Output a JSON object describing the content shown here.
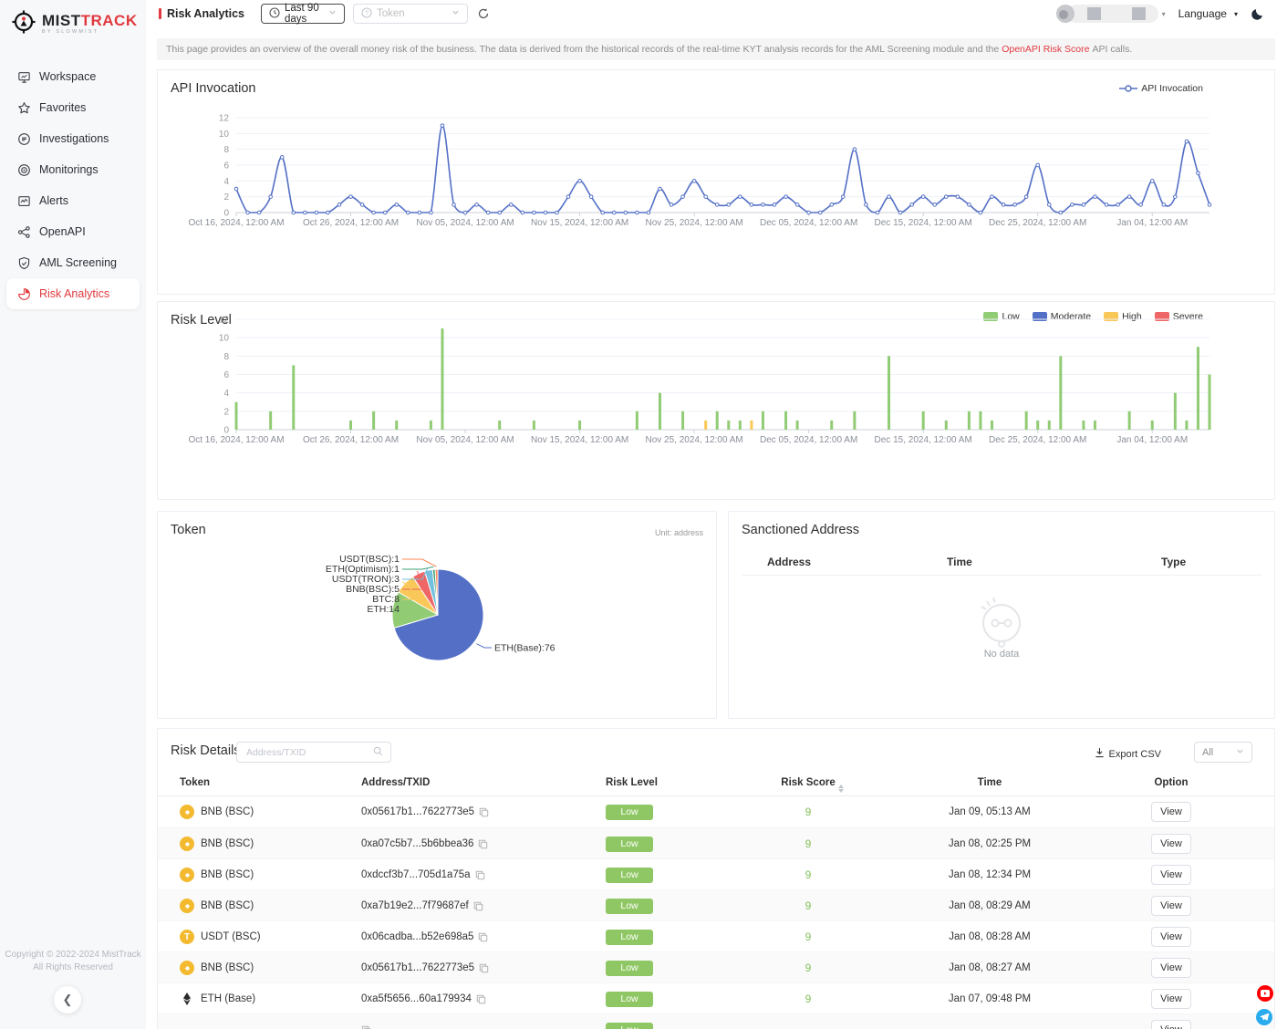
{
  "brand": {
    "mist": "MIST",
    "track": "TRACK",
    "by": "BY SLOWMIST"
  },
  "sidebar": {
    "items": [
      {
        "label": "Workspace",
        "icon": "workspace-icon",
        "active": false
      },
      {
        "label": "Favorites",
        "icon": "star-icon",
        "active": false
      },
      {
        "label": "Investigations",
        "icon": "investigations-icon",
        "active": false
      },
      {
        "label": "Monitorings",
        "icon": "target-icon",
        "active": false
      },
      {
        "label": "Alerts",
        "icon": "alerts-icon",
        "active": false
      },
      {
        "label": "OpenAPI",
        "icon": "api-icon",
        "active": false
      },
      {
        "label": "AML Screening",
        "icon": "shield-icon",
        "active": false
      },
      {
        "label": "Risk Analytics",
        "icon": "pie-icon",
        "active": true
      }
    ],
    "copyright": [
      "Copyright © 2022-2024 MistTrack",
      "All Rights Reserved"
    ]
  },
  "topbar": {
    "breadcrumb": "Risk Analytics",
    "date_range": "Last 90 days",
    "token_placeholder": "Token",
    "language": "Language"
  },
  "banner": {
    "text": "This page provides an overview of the overall money risk of the business. The data is derived from the historical records of the real-time KYT analysis records for the AML Screening module and the",
    "link": "OpenAPI Risk Score",
    "suffix": "API calls."
  },
  "chart_data": [
    {
      "id": "api_invocation",
      "type": "line",
      "title": "API Invocation",
      "legend": [
        {
          "name": "API Invocation",
          "color": "#5470c6"
        }
      ],
      "ylim": [
        0,
        12
      ],
      "y_ticks": [
        0,
        2,
        4,
        6,
        8,
        10,
        12
      ],
      "grid": true,
      "x_ticks": [
        {
          "i": 0,
          "label": "Oct 16, 2024, 12:00 AM"
        },
        {
          "i": 10,
          "label": "Oct 26, 2024, 12:00 AM"
        },
        {
          "i": 20,
          "label": "Nov 05, 2024, 12:00 AM"
        },
        {
          "i": 30,
          "label": "Nov 15, 2024, 12:00 AM"
        },
        {
          "i": 40,
          "label": "Nov 25, 2024, 12:00 AM"
        },
        {
          "i": 50,
          "label": "Dec 05, 2024, 12:00 AM"
        },
        {
          "i": 60,
          "label": "Dec 15, 2024, 12:00 AM"
        },
        {
          "i": 70,
          "label": "Dec 25, 2024, 12:00 AM"
        },
        {
          "i": 80,
          "label": "Jan 04, 12:00 AM"
        }
      ],
      "values": [
        3,
        0,
        0,
        2,
        7,
        0,
        0,
        0,
        0,
        1,
        2,
        1,
        0,
        0,
        1,
        0,
        0,
        0,
        11,
        1,
        0,
        1,
        0,
        0,
        1,
        0,
        0,
        0,
        0,
        2,
        4,
        2,
        0,
        0,
        0,
        0,
        0,
        3,
        1,
        2,
        4,
        2,
        1,
        1,
        2,
        1,
        1,
        1,
        2,
        1,
        0,
        0,
        1,
        2,
        8,
        1,
        0,
        2,
        0,
        1,
        2,
        1,
        2,
        2,
        1,
        0,
        2,
        1,
        1,
        2,
        6,
        1,
        0,
        1,
        1,
        2,
        1,
        1,
        2,
        1,
        4,
        1,
        2,
        9,
        5,
        1
      ]
    },
    {
      "id": "risk_level",
      "type": "bar",
      "title": "Risk Level",
      "legend": [
        {
          "name": "Low",
          "color": "#91cc75"
        },
        {
          "name": "Moderate",
          "color": "#5470c6"
        },
        {
          "name": "High",
          "color": "#fac858"
        },
        {
          "name": "Severe",
          "color": "#ee6666"
        }
      ],
      "ylim": [
        0,
        12
      ],
      "y_ticks": [
        0,
        2,
        4,
        6,
        8,
        10,
        12
      ],
      "grid": true,
      "x_ticks": [
        {
          "i": 0,
          "label": "Oct 16, 2024, 12:00 AM"
        },
        {
          "i": 10,
          "label": "Oct 26, 2024, 12:00 AM"
        },
        {
          "i": 20,
          "label": "Nov 05, 2024, 12:00 AM"
        },
        {
          "i": 30,
          "label": "Nov 15, 2024, 12:00 AM"
        },
        {
          "i": 40,
          "label": "Nov 25, 2024, 12:00 AM"
        },
        {
          "i": 50,
          "label": "Dec 05, 2024, 12:00 AM"
        },
        {
          "i": 60,
          "label": "Dec 15, 2024, 12:00 AM"
        },
        {
          "i": 70,
          "label": "Dec 25, 2024, 12:00 AM"
        },
        {
          "i": 80,
          "label": "Jan 04, 12:00 AM"
        }
      ],
      "series": [
        {
          "name": "Low",
          "color": "#91cc75",
          "values": [
            3,
            0,
            0,
            2,
            0,
            7,
            0,
            0,
            0,
            0,
            1,
            0,
            2,
            0,
            1,
            0,
            0,
            1,
            11,
            0,
            0,
            0,
            0,
            1,
            0,
            0,
            1,
            0,
            0,
            0,
            1,
            0,
            0,
            0,
            0,
            2,
            0,
            4,
            0,
            2,
            0,
            0,
            2,
            1,
            1,
            0,
            2,
            0,
            2,
            1,
            0,
            0,
            1,
            0,
            2,
            0,
            0,
            8,
            0,
            0,
            2,
            0,
            1,
            0,
            2,
            2,
            1,
            0,
            0,
            2,
            1,
            1,
            8,
            0,
            1,
            1,
            0,
            0,
            2,
            0,
            1,
            0,
            4,
            1,
            9,
            6
          ]
        },
        {
          "name": "High",
          "color": "#fac858",
          "points": [
            {
              "i": 41,
              "v": 1
            },
            {
              "i": 45,
              "v": 1
            }
          ]
        }
      ]
    },
    {
      "id": "token",
      "type": "pie",
      "title": "Token",
      "unit": "Unit: address",
      "slices": [
        {
          "name": "ETH(Base)",
          "value": 76,
          "color": "#5470c6"
        },
        {
          "name": "ETH",
          "value": 14,
          "color": "#91cc75"
        },
        {
          "name": "BTC",
          "value": 8,
          "color": "#fac858"
        },
        {
          "name": "BNB(BSC)",
          "value": 5,
          "color": "#ee6666"
        },
        {
          "name": "USDT(TRON)",
          "value": 3,
          "color": "#73c0de"
        },
        {
          "name": "ETH(Optimism)",
          "value": 1,
          "color": "#3ba272"
        },
        {
          "name": "USDT(BSC)",
          "value": 1,
          "color": "#fc8452"
        }
      ]
    }
  ],
  "sanctioned": {
    "title": "Sanctioned Address",
    "columns": [
      "Address",
      "Time",
      "Type"
    ],
    "empty_text": "No data"
  },
  "risk_details": {
    "title": "Risk Details",
    "search_placeholder": "Address/TXID",
    "export_label": "Export CSV",
    "filter_value": "All",
    "columns": [
      "Token",
      "Address/TXID",
      "Risk Level",
      "Risk Score",
      "Time",
      "Option"
    ],
    "view_label": "View",
    "rows": [
      {
        "token": "BNB (BSC)",
        "token_icon": "bnb",
        "address": "0x05617b1...7622773e5",
        "risk_level": "Low",
        "risk_score": "9",
        "time": "Jan 09, 05:13 AM"
      },
      {
        "token": "BNB (BSC)",
        "token_icon": "bnb",
        "address": "0xa07c5b7...5b6bbea36",
        "risk_level": "Low",
        "risk_score": "9",
        "time": "Jan 08, 02:25 PM"
      },
      {
        "token": "BNB (BSC)",
        "token_icon": "bnb",
        "address": "0xdccf3b7...705d1a75a",
        "risk_level": "Low",
        "risk_score": "9",
        "time": "Jan 08, 12:34 PM"
      },
      {
        "token": "BNB (BSC)",
        "token_icon": "bnb",
        "address": "0xa7b19e2...7f79687ef",
        "risk_level": "Low",
        "risk_score": "9",
        "time": "Jan 08, 08:29 AM"
      },
      {
        "token": "USDT (BSC)",
        "token_icon": "usdt",
        "address": "0x06cadba...b52e698a5",
        "risk_level": "Low",
        "risk_score": "9",
        "time": "Jan 08, 08:28 AM"
      },
      {
        "token": "BNB (BSC)",
        "token_icon": "bnb",
        "address": "0x05617b1...7622773e5",
        "risk_level": "Low",
        "risk_score": "9",
        "time": "Jan 08, 08:27 AM"
      },
      {
        "token": "ETH (Base)",
        "token_icon": "eth",
        "address": "0xa5f5656...60a179934",
        "risk_level": "Low",
        "risk_score": "9",
        "time": "Jan 07, 09:48 PM"
      },
      {
        "token": "",
        "token_icon": "",
        "address": "",
        "risk_level": "Low",
        "risk_score": "",
        "time": "",
        "partial": true
      }
    ]
  },
  "colors": {
    "accent_red": "#e0393e",
    "line_blue": "#5470c6",
    "low_green": "#91cc75",
    "badge_green": "#8fc764",
    "high_yellow": "#fac858",
    "severe_red": "#ee6666",
    "moderate_blue": "#5470c6"
  }
}
